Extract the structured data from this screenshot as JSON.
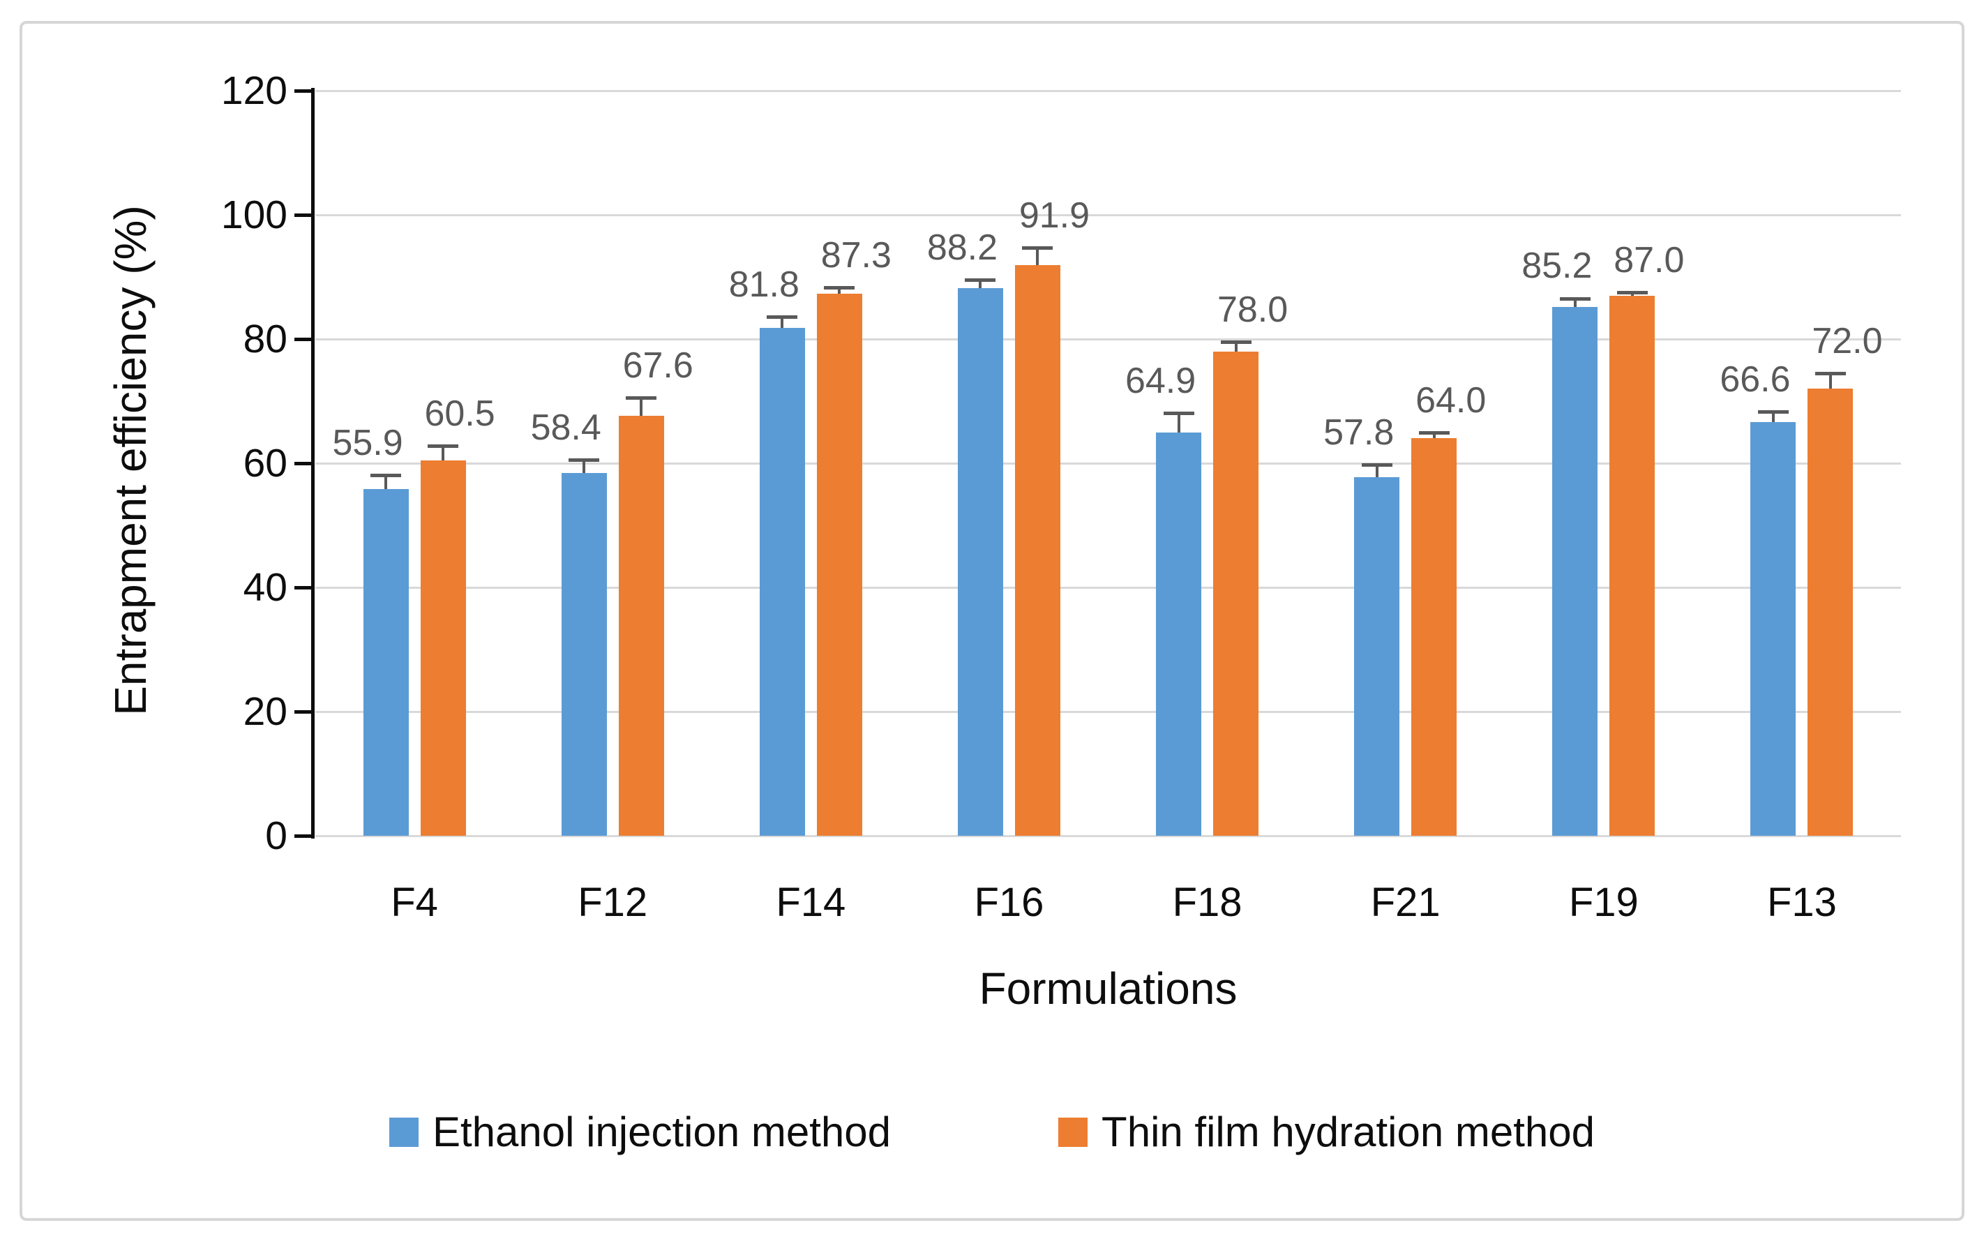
{
  "chart_data": {
    "type": "bar",
    "title": "",
    "xlabel": "Formulations",
    "ylabel": "Entrapment efficiency (%)",
    "ylim": [
      0,
      120
    ],
    "yticks": [
      0,
      20,
      40,
      60,
      80,
      100,
      120
    ],
    "grid": true,
    "legend_position": "bottom",
    "error_bars": true,
    "data_labels": true,
    "categories": [
      "F4",
      "F12",
      "F14",
      "F16",
      "F18",
      "F21",
      "F19",
      "F13"
    ],
    "series": [
      {
        "name": "Ethanol injection method",
        "color": "#5B9BD5",
        "values": [
          55.9,
          58.4,
          81.8,
          88.2,
          64.9,
          57.8,
          85.2,
          66.6
        ],
        "errors": [
          2.4,
          2.4,
          2.0,
          1.6,
          3.4,
          2.2,
          1.6,
          1.9
        ]
      },
      {
        "name": "Thin film hydration method",
        "color": "#ED7D31",
        "values": [
          60.5,
          67.6,
          87.3,
          91.9,
          78.0,
          64.0,
          87.0,
          72.0
        ],
        "errors": [
          2.5,
          3.2,
          1.2,
          3.1,
          1.8,
          1.2,
          0.8,
          2.7
        ]
      }
    ]
  },
  "colors": {
    "gridline": "#d9d9d9",
    "axis": "#0d0d0d",
    "error_bar": "#595959",
    "data_label": "#595959",
    "frame_border": "#d6d6d6"
  }
}
